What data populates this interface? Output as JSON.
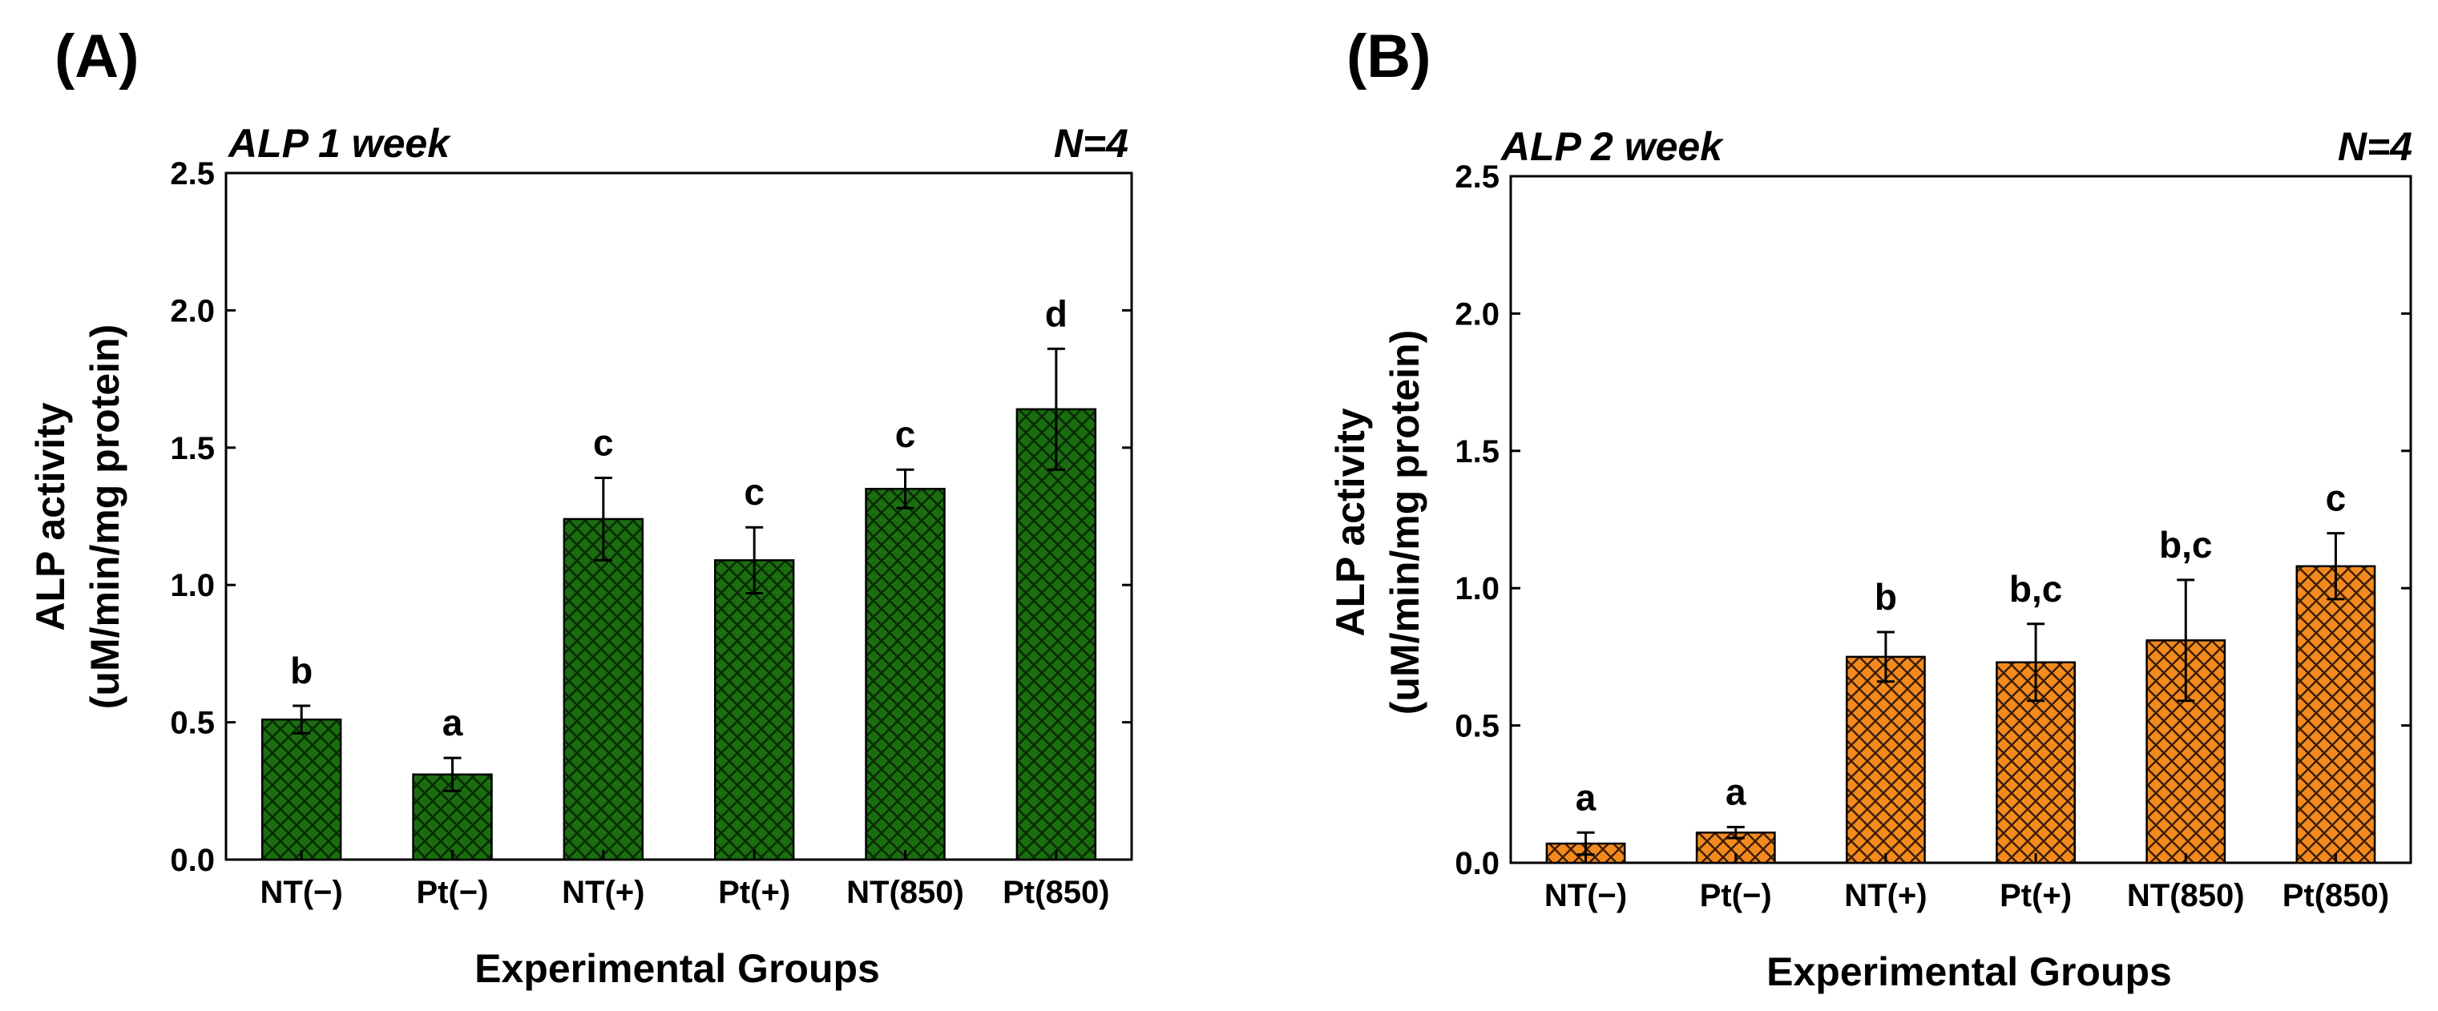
{
  "chart_data": [
    {
      "type": "bar",
      "panel_label": "(A)",
      "title": "ALP 1 week",
      "annotation": "N=4",
      "xlabel": "Experimental Groups",
      "ylabel_line1": "ALP activity",
      "ylabel_line2": "(uM/min/mg protein)",
      "ylim": [
        0,
        2.5
      ],
      "yticks": [
        "0.0",
        "0.5",
        "1.0",
        "1.5",
        "2.0",
        "2.5"
      ],
      "bar_color": "#1a6e0f",
      "hatch": "crosshatch",
      "categories": [
        "NT(−)",
        "Pt(−)",
        "NT(+)",
        "Pt(+)",
        "NT(850)",
        "Pt(850)"
      ],
      "values": [
        0.51,
        0.31,
        1.24,
        1.09,
        1.35,
        1.64
      ],
      "errors": [
        0.05,
        0.06,
        0.15,
        0.12,
        0.07,
        0.22
      ],
      "significance": [
        "b",
        "a",
        "c",
        "c",
        "c",
        "d"
      ]
    },
    {
      "type": "bar",
      "panel_label": "(B)",
      "title": "ALP 2 week",
      "annotation": "N=4",
      "xlabel": "Experimental Groups",
      "ylabel_line1": "ALP activity",
      "ylabel_line2": "(uM/min/mg protein)",
      "ylim": [
        0,
        2.5
      ],
      "yticks": [
        "0.0",
        "0.5",
        "1.0",
        "1.5",
        "2.0",
        "2.5"
      ],
      "bar_color": "#f28a1f",
      "hatch": "crosshatch",
      "categories": [
        "NT(−)",
        "Pt(−)",
        "NT(+)",
        "Pt(+)",
        "NT(850)",
        "Pt(850)"
      ],
      "values": [
        0.07,
        0.11,
        0.75,
        0.73,
        0.81,
        1.08
      ],
      "errors": [
        0.04,
        0.02,
        0.09,
        0.14,
        0.22,
        0.12
      ],
      "significance": [
        "a",
        "a",
        "b",
        "b,c",
        "b,c",
        "c"
      ]
    }
  ]
}
